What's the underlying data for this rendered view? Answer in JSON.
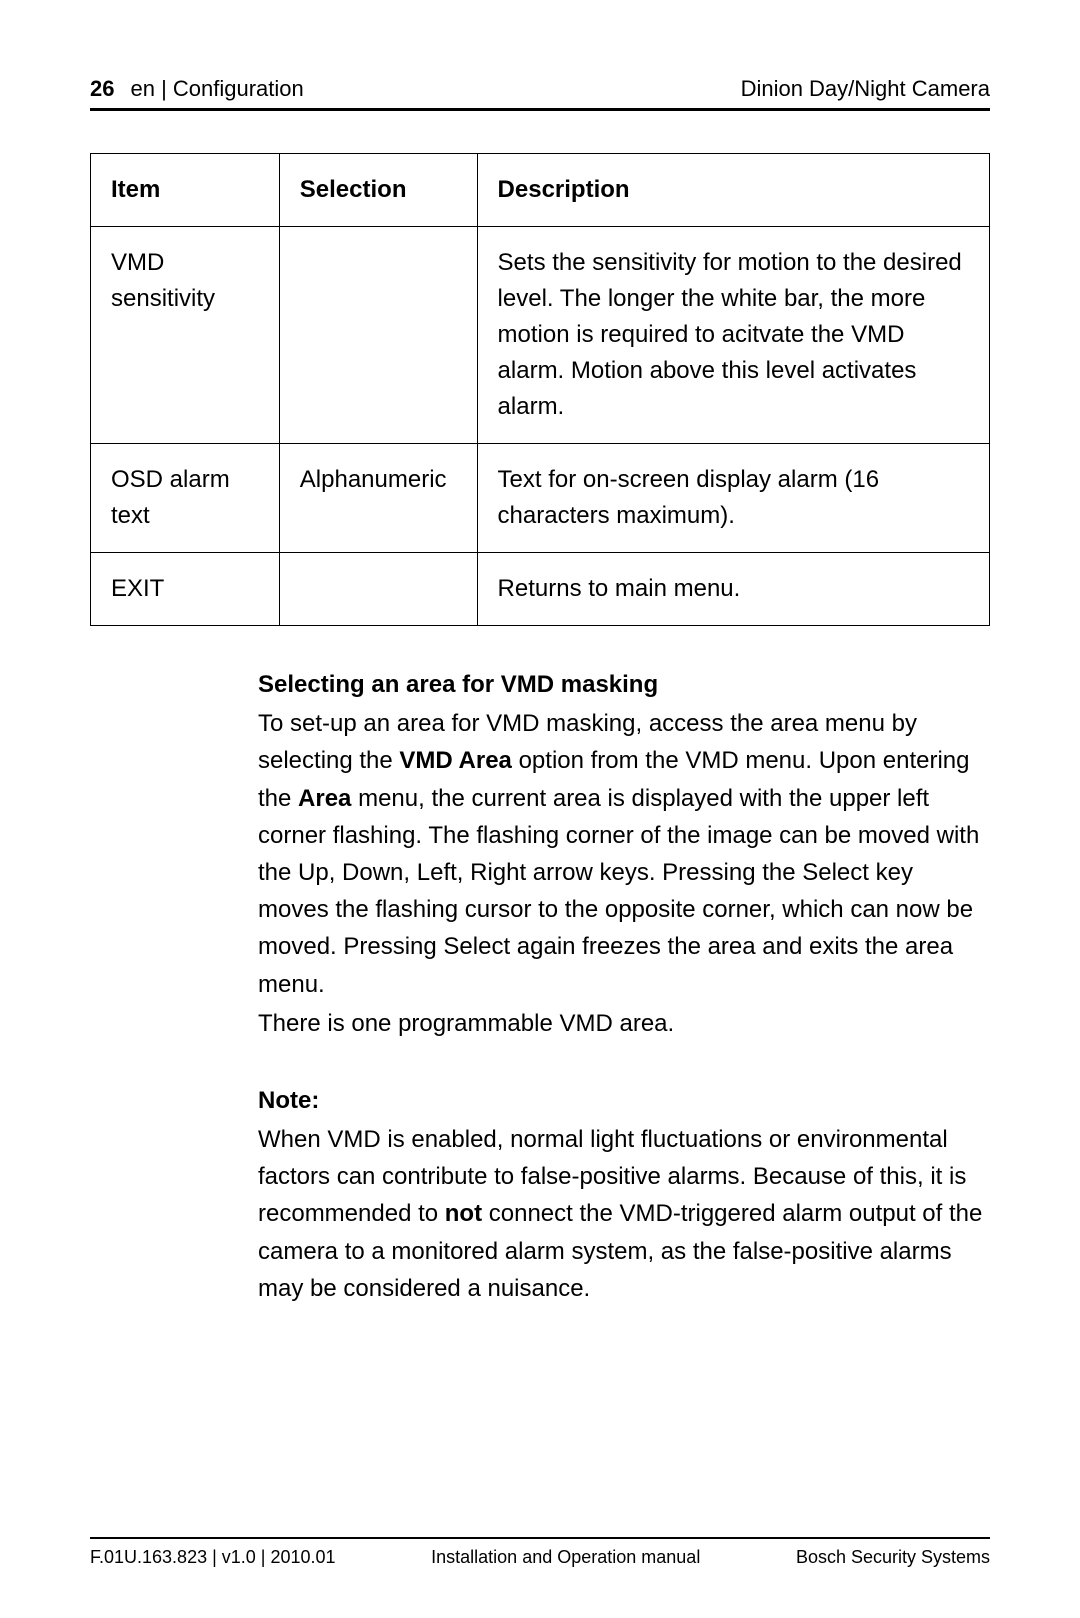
{
  "header": {
    "page_number": "26",
    "section_label": "en | Configuration",
    "product_name": "Dinion Day/Night Camera"
  },
  "table": {
    "headers": {
      "item": "Item",
      "selection": "Selection",
      "description": "Description"
    },
    "rows": [
      {
        "item": "VMD sensitivity",
        "selection": "",
        "description": "Sets the sensitivity for motion to the desired level. The longer the white bar, the more motion is required to acitvate the VMD alarm. Motion above this level activates alarm."
      },
      {
        "item": "OSD alarm text",
        "selection": "Alphanumeric",
        "description": "Text for on-screen display alarm (16 characters maximum)."
      },
      {
        "item": "EXIT",
        "selection": "",
        "description": "Returns to main menu."
      }
    ]
  },
  "body": {
    "subheading1": "Selecting an area for VMD masking",
    "p1a": "To set-up an area for VMD masking, access the area menu by selecting the ",
    "p1_bold1": "VMD Area",
    "p1b": " option from the VMD menu. Upon entering the ",
    "p1_bold2": "Area",
    "p1c": " menu, the current area is displayed with the upper left corner flashing. The flashing corner of the image can be moved with the Up, Down, Left, Right arrow keys. Pressing the Select key moves the flashing cursor to the opposite corner, which can now be moved. Pressing Select again freezes the area and exits the area menu.",
    "p2": "There is one programmable VMD area.",
    "note_heading": "Note:",
    "p3a": "When VMD is enabled, normal light fluctuations or environmental factors can contribute to false-positive alarms. Because of this, it is recommended to ",
    "p3_bold": "not",
    "p3b": " connect the VMD-triggered alarm output of the camera to a monitored alarm system, as the false-positive alarms may be considered a nuisance."
  },
  "footer": {
    "left": "F.01U.163.823 | v1.0 | 2010.01",
    "center": "Installation and Operation manual",
    "right": "Bosch Security Systems"
  },
  "styles": {
    "background_color": "#ffffff",
    "text_color": "#000000",
    "body_fontsize": 24,
    "header_fontsize": 22,
    "footer_fontsize": 18,
    "border_color": "#000000",
    "header_rule_weight": 3,
    "footer_rule_weight": 2,
    "table_border_weight": 1.5
  }
}
